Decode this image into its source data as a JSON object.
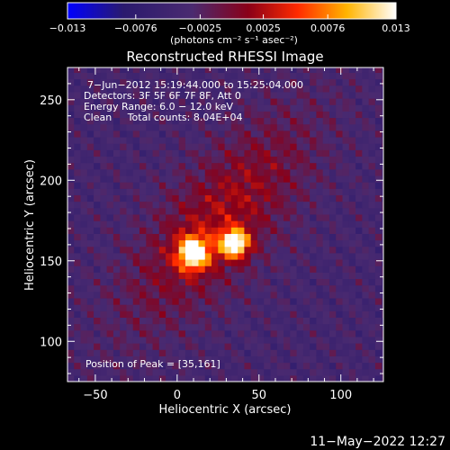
{
  "chart_data": {
    "type": "heatmap",
    "title": "Reconstructed RHESSI Image",
    "xlabel": "Heliocentric X (arcsec)",
    "ylabel": "Heliocentric Y (arcsec)",
    "xlim": [
      -67,
      126
    ],
    "ylim": [
      75,
      270
    ],
    "x_ticks": [
      -50,
      0,
      50,
      100
    ],
    "y_ticks": [
      100,
      150,
      200,
      250
    ],
    "colorbar": {
      "min": -0.013,
      "max": 0.013,
      "tick_values": [
        -0.013,
        -0.0076,
        -0.0025,
        0.0025,
        0.0076,
        0.013
      ],
      "tick_labels": [
        "−0.013",
        "−0.0076",
        "−0.0025",
        "0.0025",
        "0.0076",
        "0.013"
      ],
      "unit_label": "(photons cm⁻² s⁻¹ asec⁻²)",
      "stops": [
        "#0000ff",
        "#2a1a6e",
        "#4a2a70",
        "#8a0018",
        "#ff2a00",
        "#ffb400",
        "#ffffff"
      ]
    },
    "annotations": [
      "7−Jun−2012 15:19:44.000 to 15:25:04.000",
      "Detectors: 3F 5F 6F 7F 8F, Att 0",
      "Energy Range: 6.0 − 12.0 keV",
      "Clean     Total counts: 8.04E+04"
    ],
    "peak_label": "Position of Peak = [35,161]",
    "peaks": [
      {
        "x": 35,
        "y": 161,
        "amp": 0.013,
        "sx": 6,
        "sy": 6
      },
      {
        "x": 10,
        "y": 155,
        "amp": 0.0125,
        "sx": 6.5,
        "sy": 7
      }
    ],
    "emission_band": {
      "x0": 25,
      "y0": 175,
      "angle_deg": 50,
      "amp": 0.006,
      "along_sigma": 55,
      "across_sigma": 22
    },
    "background_level": -0.004
  },
  "timestamp": "11−May−2022 12:27"
}
